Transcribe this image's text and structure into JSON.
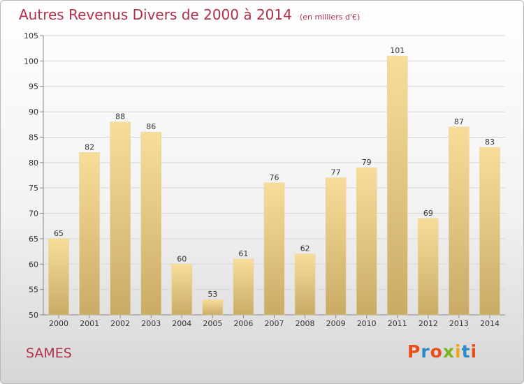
{
  "header": {
    "title": "Autres Revenus Divers de 2000 à 2014",
    "subtitle": "(en milliers d'€)"
  },
  "footer": {
    "place": "SAMES",
    "logo": "Proxiti"
  },
  "colors": {
    "title": "#b0304a",
    "bar_top": "#f8dd9a",
    "bar_bottom": "#c9ab66",
    "logo": [
      "#e84e1b",
      "#2b8ac9",
      "#e84e1b",
      "#7ab51d",
      "#f2a60c",
      "#2b8ac9",
      "#e84e1b"
    ]
  },
  "chart_data": {
    "type": "bar",
    "title": "Autres Revenus Divers de 2000 à 2014",
    "categories": [
      "2000",
      "2001",
      "2002",
      "2003",
      "2004",
      "2005",
      "2006",
      "2007",
      "2008",
      "2009",
      "2010",
      "2011",
      "2012",
      "2013",
      "2014"
    ],
    "values": [
      65,
      82,
      88,
      86,
      60,
      53,
      61,
      76,
      62,
      77,
      79,
      101,
      69,
      87,
      83
    ],
    "ylim": [
      50,
      105
    ],
    "yticks": [
      50,
      55,
      60,
      65,
      70,
      75,
      80,
      85,
      90,
      95,
      100,
      105
    ],
    "grid": true,
    "data_labels": true
  }
}
